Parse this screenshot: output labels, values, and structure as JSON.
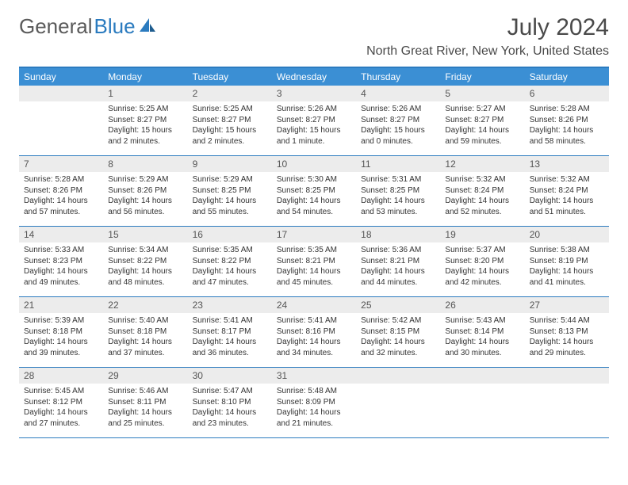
{
  "logo": {
    "text1": "General",
    "text2": "Blue"
  },
  "title": "July 2024",
  "location": "North Great River, New York, United States",
  "colors": {
    "header_bar": "#3b8fd4",
    "accent": "#2b7bbf",
    "daynum_bg": "#ececec",
    "text": "#4a4a4a"
  },
  "weekdays": [
    "Sunday",
    "Monday",
    "Tuesday",
    "Wednesday",
    "Thursday",
    "Friday",
    "Saturday"
  ],
  "weeks": [
    [
      {
        "n": "",
        "sr": "",
        "ss": "",
        "dl": ""
      },
      {
        "n": "1",
        "sr": "Sunrise: 5:25 AM",
        "ss": "Sunset: 8:27 PM",
        "dl": "Daylight: 15 hours and 2 minutes."
      },
      {
        "n": "2",
        "sr": "Sunrise: 5:25 AM",
        "ss": "Sunset: 8:27 PM",
        "dl": "Daylight: 15 hours and 2 minutes."
      },
      {
        "n": "3",
        "sr": "Sunrise: 5:26 AM",
        "ss": "Sunset: 8:27 PM",
        "dl": "Daylight: 15 hours and 1 minute."
      },
      {
        "n": "4",
        "sr": "Sunrise: 5:26 AM",
        "ss": "Sunset: 8:27 PM",
        "dl": "Daylight: 15 hours and 0 minutes."
      },
      {
        "n": "5",
        "sr": "Sunrise: 5:27 AM",
        "ss": "Sunset: 8:27 PM",
        "dl": "Daylight: 14 hours and 59 minutes."
      },
      {
        "n": "6",
        "sr": "Sunrise: 5:28 AM",
        "ss": "Sunset: 8:26 PM",
        "dl": "Daylight: 14 hours and 58 minutes."
      }
    ],
    [
      {
        "n": "7",
        "sr": "Sunrise: 5:28 AM",
        "ss": "Sunset: 8:26 PM",
        "dl": "Daylight: 14 hours and 57 minutes."
      },
      {
        "n": "8",
        "sr": "Sunrise: 5:29 AM",
        "ss": "Sunset: 8:26 PM",
        "dl": "Daylight: 14 hours and 56 minutes."
      },
      {
        "n": "9",
        "sr": "Sunrise: 5:29 AM",
        "ss": "Sunset: 8:25 PM",
        "dl": "Daylight: 14 hours and 55 minutes."
      },
      {
        "n": "10",
        "sr": "Sunrise: 5:30 AM",
        "ss": "Sunset: 8:25 PM",
        "dl": "Daylight: 14 hours and 54 minutes."
      },
      {
        "n": "11",
        "sr": "Sunrise: 5:31 AM",
        "ss": "Sunset: 8:25 PM",
        "dl": "Daylight: 14 hours and 53 minutes."
      },
      {
        "n": "12",
        "sr": "Sunrise: 5:32 AM",
        "ss": "Sunset: 8:24 PM",
        "dl": "Daylight: 14 hours and 52 minutes."
      },
      {
        "n": "13",
        "sr": "Sunrise: 5:32 AM",
        "ss": "Sunset: 8:24 PM",
        "dl": "Daylight: 14 hours and 51 minutes."
      }
    ],
    [
      {
        "n": "14",
        "sr": "Sunrise: 5:33 AM",
        "ss": "Sunset: 8:23 PM",
        "dl": "Daylight: 14 hours and 49 minutes."
      },
      {
        "n": "15",
        "sr": "Sunrise: 5:34 AM",
        "ss": "Sunset: 8:22 PM",
        "dl": "Daylight: 14 hours and 48 minutes."
      },
      {
        "n": "16",
        "sr": "Sunrise: 5:35 AM",
        "ss": "Sunset: 8:22 PM",
        "dl": "Daylight: 14 hours and 47 minutes."
      },
      {
        "n": "17",
        "sr": "Sunrise: 5:35 AM",
        "ss": "Sunset: 8:21 PM",
        "dl": "Daylight: 14 hours and 45 minutes."
      },
      {
        "n": "18",
        "sr": "Sunrise: 5:36 AM",
        "ss": "Sunset: 8:21 PM",
        "dl": "Daylight: 14 hours and 44 minutes."
      },
      {
        "n": "19",
        "sr": "Sunrise: 5:37 AM",
        "ss": "Sunset: 8:20 PM",
        "dl": "Daylight: 14 hours and 42 minutes."
      },
      {
        "n": "20",
        "sr": "Sunrise: 5:38 AM",
        "ss": "Sunset: 8:19 PM",
        "dl": "Daylight: 14 hours and 41 minutes."
      }
    ],
    [
      {
        "n": "21",
        "sr": "Sunrise: 5:39 AM",
        "ss": "Sunset: 8:18 PM",
        "dl": "Daylight: 14 hours and 39 minutes."
      },
      {
        "n": "22",
        "sr": "Sunrise: 5:40 AM",
        "ss": "Sunset: 8:18 PM",
        "dl": "Daylight: 14 hours and 37 minutes."
      },
      {
        "n": "23",
        "sr": "Sunrise: 5:41 AM",
        "ss": "Sunset: 8:17 PM",
        "dl": "Daylight: 14 hours and 36 minutes."
      },
      {
        "n": "24",
        "sr": "Sunrise: 5:41 AM",
        "ss": "Sunset: 8:16 PM",
        "dl": "Daylight: 14 hours and 34 minutes."
      },
      {
        "n": "25",
        "sr": "Sunrise: 5:42 AM",
        "ss": "Sunset: 8:15 PM",
        "dl": "Daylight: 14 hours and 32 minutes."
      },
      {
        "n": "26",
        "sr": "Sunrise: 5:43 AM",
        "ss": "Sunset: 8:14 PM",
        "dl": "Daylight: 14 hours and 30 minutes."
      },
      {
        "n": "27",
        "sr": "Sunrise: 5:44 AM",
        "ss": "Sunset: 8:13 PM",
        "dl": "Daylight: 14 hours and 29 minutes."
      }
    ],
    [
      {
        "n": "28",
        "sr": "Sunrise: 5:45 AM",
        "ss": "Sunset: 8:12 PM",
        "dl": "Daylight: 14 hours and 27 minutes."
      },
      {
        "n": "29",
        "sr": "Sunrise: 5:46 AM",
        "ss": "Sunset: 8:11 PM",
        "dl": "Daylight: 14 hours and 25 minutes."
      },
      {
        "n": "30",
        "sr": "Sunrise: 5:47 AM",
        "ss": "Sunset: 8:10 PM",
        "dl": "Daylight: 14 hours and 23 minutes."
      },
      {
        "n": "31",
        "sr": "Sunrise: 5:48 AM",
        "ss": "Sunset: 8:09 PM",
        "dl": "Daylight: 14 hours and 21 minutes."
      },
      {
        "n": "",
        "sr": "",
        "ss": "",
        "dl": ""
      },
      {
        "n": "",
        "sr": "",
        "ss": "",
        "dl": ""
      },
      {
        "n": "",
        "sr": "",
        "ss": "",
        "dl": ""
      }
    ]
  ]
}
